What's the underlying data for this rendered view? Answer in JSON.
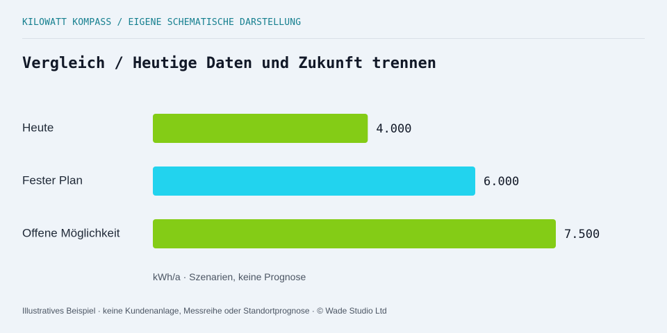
{
  "header": {
    "kicker": "KILOWATT KOMPASS / EIGENE SCHEMATISCHE DARSTELLUNG",
    "title": "Vergleich / Heutige Daten und Zukunft trennen"
  },
  "chart_data": {
    "type": "bar",
    "orientation": "horizontal",
    "categories": [
      "Heute",
      "Fester Plan",
      "Offene Möglichkeit"
    ],
    "values": [
      4000,
      6000,
      7500
    ],
    "value_labels": [
      "4.000",
      "6.000",
      "7.500"
    ],
    "bar_colors": [
      "#84cc16",
      "#22d3ee",
      "#84cc16"
    ],
    "unit_note": "kWh/a · Szenarien, keine Prognose",
    "grid": false
  },
  "footer": {
    "note": "Illustratives Beispiel · keine Kundenanlage, Messreihe oder Standortprognose · © Wade Studio Ltd"
  }
}
